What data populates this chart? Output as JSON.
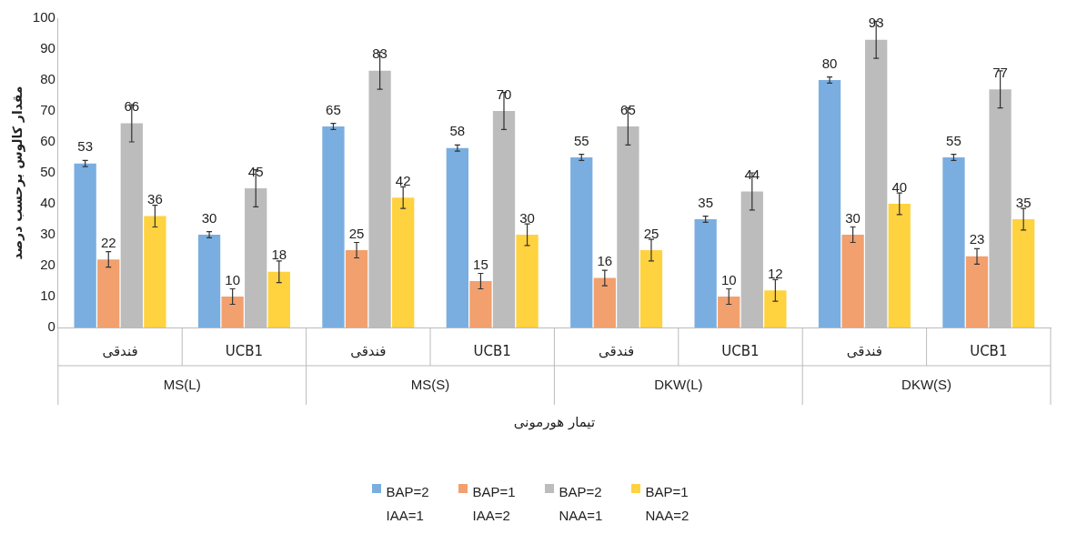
{
  "chart_data": {
    "type": "bar",
    "xlabel": "تیمار هورمونی",
    "ylabel": "مقدار کالوس برحسب درصد",
    "categories": [
      "فندقی",
      "UCB1",
      "فندقی",
      "UCB1",
      "فندقی",
      "UCB1",
      "فندقی",
      "UCB1"
    ],
    "annotations": [
      "MS(L)",
      "MS(S)",
      "DKW(L)",
      "DKW(S)"
    ],
    "series": [
      {
        "name": "BAP=2 IAA=1",
        "color": "#7aaee0",
        "values": [
          53,
          30,
          65,
          58,
          55,
          35,
          80,
          55
        ],
        "errors": [
          1,
          1,
          1,
          1,
          1,
          1,
          1,
          1
        ]
      },
      {
        "name": "BAP=1 IAA=2",
        "color": "#f2a06e",
        "values": [
          22,
          10,
          25,
          15,
          16,
          10,
          30,
          23
        ],
        "errors": [
          2.5,
          2.5,
          2.5,
          2.5,
          2.5,
          2.5,
          2.5,
          2.5
        ]
      },
      {
        "name": "BAP=2 NAA=1",
        "color": "#bcbcbc",
        "values": [
          66,
          45,
          83,
          70,
          65,
          44,
          93,
          77
        ],
        "errors": [
          6,
          6,
          6,
          6,
          6,
          6,
          6,
          6
        ]
      },
      {
        "name": "BAP=1 NAA=2",
        "color": "#ffd23f",
        "values": [
          36,
          18,
          42,
          30,
          25,
          12,
          40,
          35
        ],
        "errors": [
          3.5,
          3.5,
          3.5,
          3.5,
          3.5,
          3.5,
          3.5,
          3.5
        ]
      }
    ],
    "ylim": [
      0,
      100
    ],
    "yticks": [
      0,
      10,
      20,
      30,
      40,
      50,
      60,
      70,
      80,
      90,
      100
    ],
    "grid": false,
    "legend": "bottom",
    "data_labels": true
  }
}
